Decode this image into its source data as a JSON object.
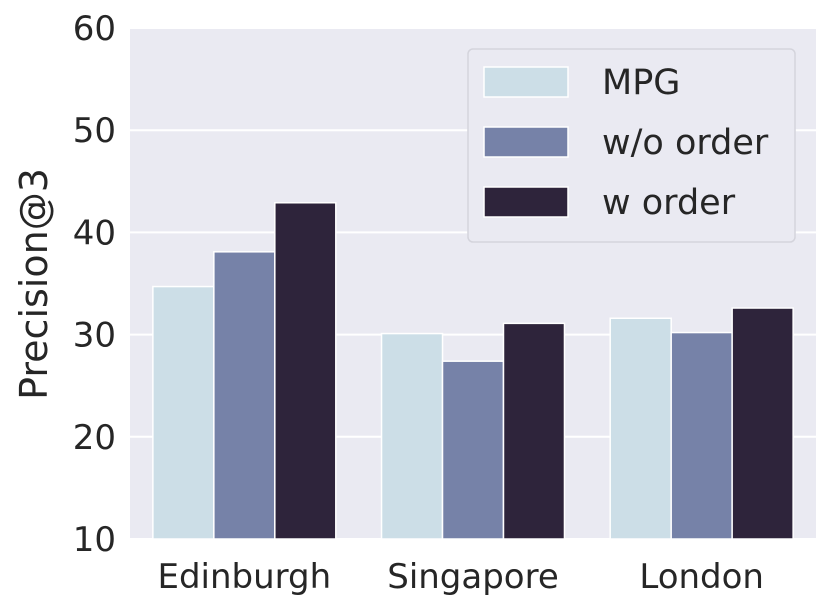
{
  "chart_data": {
    "type": "bar",
    "title": "",
    "xlabel": "",
    "ylabel": "Precision@3",
    "categories": [
      "Edinburgh",
      "Singapore",
      "London"
    ],
    "series": [
      {
        "name": "MPG",
        "values": [
          34.7,
          30.1,
          31.6
        ],
        "color": "#ccdee7"
      },
      {
        "name": "w/o order",
        "values": [
          38.1,
          27.4,
          30.2
        ],
        "color": "#7682a8"
      },
      {
        "name": "w order",
        "values": [
          42.9,
          31.1,
          32.6
        ],
        "color": "#2e243b"
      }
    ],
    "ylim": [
      10,
      60
    ],
    "yticks": [
      "10",
      "20",
      "30",
      "40",
      "50",
      "60"
    ],
    "grid": true,
    "legend_position": "top-right",
    "plot_background": "#eaeaf2"
  }
}
